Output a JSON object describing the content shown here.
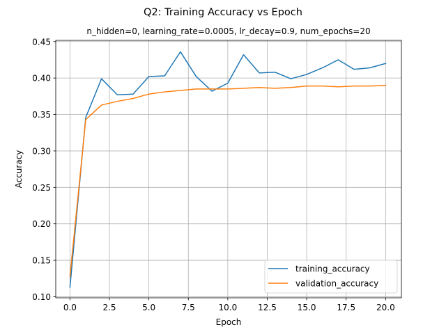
{
  "chart_data": {
    "type": "line",
    "title": "Q2: Training Accuracy vs Epoch",
    "subtitle": "n_hidden=0, learning_rate=0.0005, lr_decay=0.9, num_epochs=20",
    "xlabel": "Epoch",
    "ylabel": "Accuracy",
    "xlim": [
      -0.9,
      21.0
    ],
    "ylim": [
      0.0985,
      0.4517
    ],
    "xticks": [
      "0.0",
      "2.5",
      "5.0",
      "7.5",
      "10.0",
      "12.5",
      "15.0",
      "17.5",
      "20.0"
    ],
    "yticks": [
      "0.10",
      "0.15",
      "0.20",
      "0.25",
      "0.30",
      "0.35",
      "0.40",
      "0.45"
    ],
    "grid": true,
    "legend_position": "lower-right",
    "x": [
      0,
      1,
      2,
      3,
      4,
      5,
      6,
      7,
      8,
      9,
      10,
      11,
      12,
      13,
      14,
      15,
      16,
      17,
      18,
      19,
      20
    ],
    "series": [
      {
        "name": "training_accuracy",
        "color": "#1f77b4",
        "values": [
          0.113,
          0.346,
          0.399,
          0.377,
          0.378,
          0.402,
          0.403,
          0.436,
          0.402,
          0.382,
          0.393,
          0.432,
          0.407,
          0.408,
          0.399,
          0.405,
          0.414,
          0.425,
          0.412,
          0.414,
          0.42
        ]
      },
      {
        "name": "validation_accuracy",
        "color": "#ff7f0e",
        "values": [
          0.128,
          0.343,
          0.363,
          0.368,
          0.372,
          0.378,
          0.381,
          0.383,
          0.385,
          0.385,
          0.385,
          0.386,
          0.387,
          0.386,
          0.387,
          0.389,
          0.389,
          0.388,
          0.389,
          0.389,
          0.39
        ]
      }
    ]
  }
}
